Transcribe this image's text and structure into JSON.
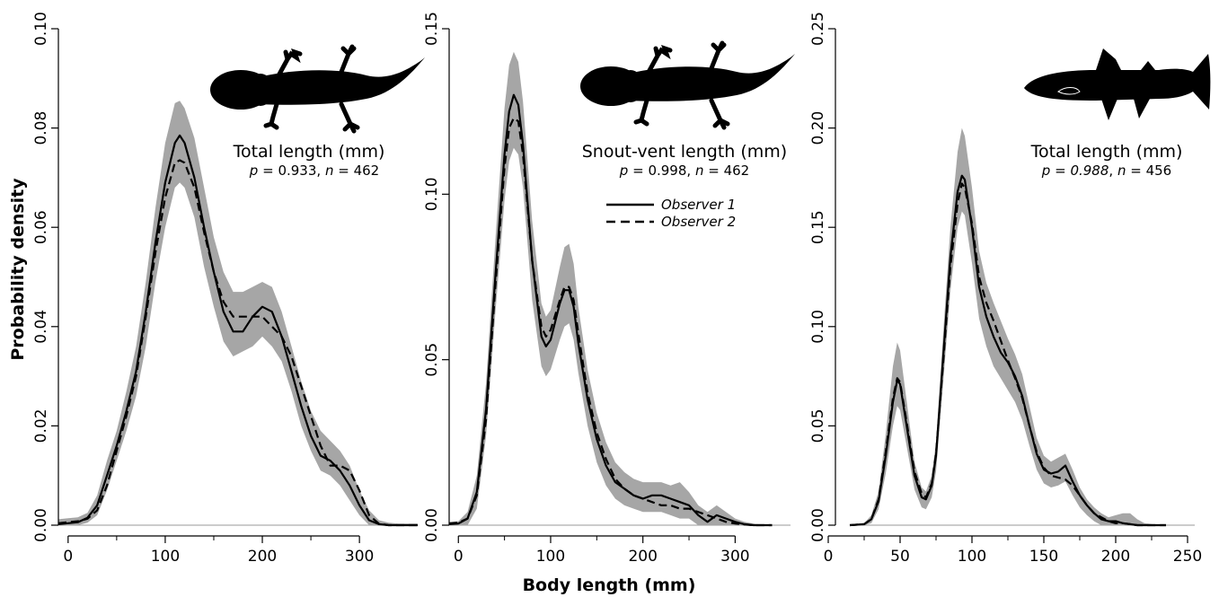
{
  "figure": {
    "ylabel": "Probability density",
    "xlabel": "Body length (mm)",
    "colors": {
      "band": "#a6a6a6",
      "line": "#000000",
      "baseline": "#999999"
    }
  },
  "legend": {
    "observer1": "Observer 1",
    "observer2": "Observer 2"
  },
  "chart_data": [
    {
      "type": "line",
      "icon": "salamander-silhouette",
      "title": "Total length (mm)",
      "stat": {
        "p_label": "p",
        "p_value": "0.933",
        "n_label": "n",
        "n_value": "462"
      },
      "xlim": [
        -10,
        360
      ],
      "ylim": [
        0,
        0.1
      ],
      "xticks": [
        0,
        100,
        200,
        300
      ],
      "xtick_labels": [
        "0",
        "100",
        "200",
        "300"
      ],
      "yticks": [
        0,
        0.02,
        0.04,
        0.06,
        0.08,
        0.1
      ],
      "ytick_labels": [
        "0.00",
        "0.02",
        "0.04",
        "0.06",
        "0.08",
        "0.10"
      ],
      "x": [
        -10,
        0,
        10,
        20,
        30,
        40,
        50,
        60,
        70,
        80,
        90,
        100,
        110,
        115,
        120,
        130,
        140,
        150,
        160,
        170,
        180,
        190,
        200,
        210,
        220,
        230,
        240,
        250,
        260,
        270,
        280,
        290,
        300,
        310,
        320,
        330,
        340,
        350,
        360
      ],
      "series": [
        {
          "name": "Observer 1",
          "dash": "solid",
          "values": [
            0.0002,
            0.0004,
            0.0006,
            0.0015,
            0.004,
            0.01,
            0.016,
            0.023,
            0.031,
            0.043,
            0.057,
            0.069,
            0.077,
            0.0785,
            0.077,
            0.07,
            0.06,
            0.051,
            0.043,
            0.039,
            0.039,
            0.042,
            0.044,
            0.043,
            0.038,
            0.031,
            0.024,
            0.018,
            0.014,
            0.013,
            0.011,
            0.008,
            0.004,
            0.001,
            0.0002,
            0,
            0,
            0,
            0
          ]
        },
        {
          "name": "Observer 2",
          "dash": "dashed",
          "values": [
            0.0004,
            0.0006,
            0.0008,
            0.0013,
            0.003,
            0.008,
            0.015,
            0.022,
            0.03,
            0.042,
            0.055,
            0.066,
            0.073,
            0.0735,
            0.073,
            0.068,
            0.059,
            0.051,
            0.045,
            0.042,
            0.042,
            0.042,
            0.042,
            0.04,
            0.038,
            0.034,
            0.028,
            0.022,
            0.016,
            0.012,
            0.012,
            0.011,
            0.007,
            0.002,
            0.0003,
            0,
            0,
            0,
            0
          ]
        }
      ],
      "band": {
        "upper": [
          0.0012,
          0.0014,
          0.0016,
          0.0025,
          0.006,
          0.013,
          0.019,
          0.027,
          0.036,
          0.049,
          0.064,
          0.077,
          0.085,
          0.0855,
          0.084,
          0.078,
          0.068,
          0.058,
          0.051,
          0.047,
          0.047,
          0.048,
          0.049,
          0.048,
          0.043,
          0.036,
          0.029,
          0.023,
          0.019,
          0.017,
          0.015,
          0.012,
          0.007,
          0.003,
          0.001,
          0.0005,
          0.0003,
          0.0003,
          0.0003
        ],
        "lower": [
          0,
          0,
          0,
          0.0005,
          0.002,
          0.007,
          0.013,
          0.019,
          0.026,
          0.036,
          0.049,
          0.06,
          0.068,
          0.069,
          0.068,
          0.062,
          0.052,
          0.044,
          0.037,
          0.034,
          0.035,
          0.036,
          0.038,
          0.036,
          0.033,
          0.027,
          0.02,
          0.015,
          0.011,
          0.01,
          0.008,
          0.005,
          0.002,
          0,
          0,
          0,
          0,
          0,
          0
        ]
      }
    },
    {
      "type": "line",
      "icon": "salamander-silhouette",
      "title": "Snout-vent length (mm)",
      "stat": {
        "p_label": "p",
        "p_value": "0.998",
        "n_label": "n",
        "n_value": "462"
      },
      "xlim": [
        -10,
        360
      ],
      "ylim": [
        0,
        0.15
      ],
      "xticks": [
        0,
        100,
        200,
        300
      ],
      "xtick_labels": [
        "0",
        "100",
        "200",
        "300"
      ],
      "yticks": [
        0,
        0.05,
        0.1,
        0.15
      ],
      "ytick_labels": [
        "0.00",
        "0.05",
        "0.10",
        "0.15"
      ],
      "x": [
        -10,
        0,
        10,
        20,
        30,
        40,
        50,
        55,
        60,
        65,
        70,
        80,
        90,
        95,
        100,
        110,
        115,
        120,
        125,
        130,
        140,
        150,
        160,
        170,
        180,
        190,
        200,
        210,
        220,
        230,
        240,
        250,
        260,
        270,
        280,
        290,
        300,
        310,
        320,
        330,
        340
      ],
      "series": [
        {
          "name": "Observer 1",
          "dash": "solid",
          "values": [
            0.0003,
            0.0005,
            0.002,
            0.01,
            0.035,
            0.075,
            0.112,
            0.125,
            0.13,
            0.127,
            0.115,
            0.08,
            0.057,
            0.054,
            0.056,
            0.067,
            0.071,
            0.071,
            0.066,
            0.055,
            0.038,
            0.026,
            0.018,
            0.013,
            0.011,
            0.009,
            0.008,
            0.009,
            0.009,
            0.008,
            0.007,
            0.006,
            0.003,
            0.001,
            0.003,
            0.002,
            0.001,
            0.0003,
            0,
            0,
            0
          ]
        },
        {
          "name": "Observer 2",
          "dash": "dashed",
          "values": [
            0.0005,
            0.0008,
            0.002,
            0.009,
            0.032,
            0.072,
            0.108,
            0.12,
            0.123,
            0.122,
            0.112,
            0.08,
            0.06,
            0.057,
            0.059,
            0.068,
            0.072,
            0.072,
            0.068,
            0.058,
            0.04,
            0.028,
            0.02,
            0.014,
            0.011,
            0.009,
            0.008,
            0.007,
            0.006,
            0.006,
            0.005,
            0.005,
            0.004,
            0.003,
            0.002,
            0.001,
            0.0005,
            0.0002,
            0,
            0,
            0
          ]
        }
      ],
      "band": {
        "upper": [
          0.001,
          0.0012,
          0.004,
          0.015,
          0.043,
          0.086,
          0.126,
          0.139,
          0.143,
          0.14,
          0.128,
          0.092,
          0.067,
          0.063,
          0.065,
          0.078,
          0.084,
          0.085,
          0.079,
          0.066,
          0.047,
          0.034,
          0.025,
          0.019,
          0.016,
          0.014,
          0.013,
          0.013,
          0.013,
          0.012,
          0.013,
          0.01,
          0.006,
          0.004,
          0.006,
          0.004,
          0.002,
          0.001,
          0.0005,
          0,
          0
        ],
        "lower": [
          0,
          0,
          0,
          0.005,
          0.027,
          0.064,
          0.098,
          0.11,
          0.114,
          0.112,
          0.102,
          0.068,
          0.048,
          0.045,
          0.047,
          0.056,
          0.06,
          0.061,
          0.056,
          0.046,
          0.03,
          0.019,
          0.012,
          0.008,
          0.006,
          0.005,
          0.004,
          0.004,
          0.004,
          0.003,
          0.002,
          0.002,
          0,
          0,
          0,
          0,
          0,
          0,
          0,
          0,
          0
        ]
      }
    },
    {
      "type": "line",
      "icon": "fish-silhouette",
      "title": "Total length (mm)",
      "stat": {
        "p_label": "p",
        "p_value": "0.988",
        "n_label": "n",
        "n_value": "456"
      },
      "xlim": [
        5,
        255
      ],
      "ylim": [
        0,
        0.25
      ],
      "xticks": [
        0,
        50,
        100,
        150,
        200,
        250
      ],
      "xtick_labels": [
        "0",
        "50",
        "100",
        "150",
        "200",
        "250"
      ],
      "yticks": [
        0,
        0.05,
        0.1,
        0.15,
        0.2,
        0.25
      ],
      "ytick_labels": [
        "0.00",
        "0.05",
        "0.10",
        "0.15",
        "0.20",
        "0.25"
      ],
      "x": [
        15,
        25,
        30,
        35,
        40,
        45,
        48,
        50,
        55,
        60,
        65,
        68,
        72,
        75,
        80,
        85,
        90,
        93,
        95,
        100,
        105,
        110,
        115,
        120,
        125,
        130,
        135,
        140,
        145,
        150,
        155,
        160,
        165,
        170,
        175,
        180,
        185,
        190,
        195,
        200,
        205,
        210,
        215,
        220,
        225,
        230,
        235
      ],
      "series": [
        {
          "name": "Observer 1",
          "dash": "solid",
          "values": [
            0,
            0.0005,
            0.003,
            0.012,
            0.035,
            0.062,
            0.073,
            0.071,
            0.048,
            0.025,
            0.014,
            0.013,
            0.02,
            0.035,
            0.085,
            0.135,
            0.168,
            0.176,
            0.174,
            0.15,
            0.12,
            0.105,
            0.095,
            0.087,
            0.082,
            0.075,
            0.065,
            0.05,
            0.036,
            0.028,
            0.026,
            0.027,
            0.03,
            0.022,
            0.015,
            0.01,
            0.006,
            0.003,
            0.002,
            0.002,
            0.001,
            0.0005,
            0,
            0,
            0,
            0,
            0
          ]
        },
        {
          "name": "Observer 2",
          "dash": "dashed",
          "values": [
            0,
            0.0005,
            0.003,
            0.013,
            0.037,
            0.064,
            0.074,
            0.072,
            0.05,
            0.027,
            0.016,
            0.014,
            0.021,
            0.036,
            0.082,
            0.13,
            0.162,
            0.172,
            0.17,
            0.152,
            0.125,
            0.112,
            0.103,
            0.093,
            0.083,
            0.074,
            0.064,
            0.05,
            0.037,
            0.029,
            0.025,
            0.024,
            0.023,
            0.02,
            0.015,
            0.01,
            0.006,
            0.004,
            0.002,
            0.001,
            0.001,
            0.0005,
            0,
            0,
            0,
            0,
            0
          ]
        }
      ],
      "band": {
        "upper": [
          0,
          0.001,
          0.005,
          0.017,
          0.046,
          0.08,
          0.092,
          0.088,
          0.06,
          0.032,
          0.019,
          0.017,
          0.025,
          0.042,
          0.097,
          0.15,
          0.188,
          0.2,
          0.196,
          0.17,
          0.138,
          0.122,
          0.112,
          0.103,
          0.094,
          0.086,
          0.076,
          0.06,
          0.044,
          0.035,
          0.032,
          0.034,
          0.036,
          0.028,
          0.019,
          0.013,
          0.009,
          0.006,
          0.004,
          0.005,
          0.006,
          0.006,
          0.003,
          0.001,
          0.0005,
          0,
          0
        ],
        "lower": [
          0,
          0,
          0.001,
          0.008,
          0.026,
          0.05,
          0.06,
          0.058,
          0.038,
          0.018,
          0.009,
          0.008,
          0.014,
          0.027,
          0.072,
          0.118,
          0.15,
          0.158,
          0.156,
          0.132,
          0.104,
          0.09,
          0.08,
          0.074,
          0.068,
          0.062,
          0.053,
          0.04,
          0.028,
          0.021,
          0.019,
          0.02,
          0.022,
          0.015,
          0.009,
          0.005,
          0.002,
          0,
          0,
          0,
          0,
          0,
          0,
          0,
          0,
          0,
          0
        ]
      }
    }
  ]
}
